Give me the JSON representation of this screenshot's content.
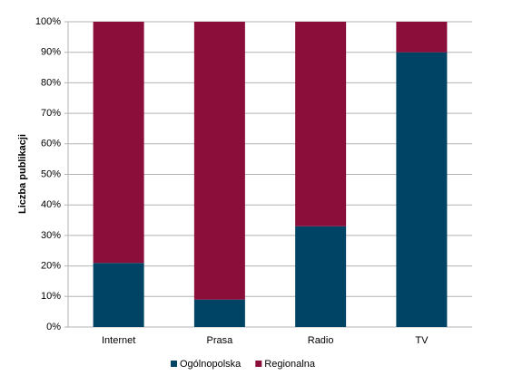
{
  "chart_data": {
    "type": "stacked_bar",
    "y_label": "Liczba publikacji",
    "categories": [
      "Internet",
      "Prasa",
      "Radio",
      "TV"
    ],
    "series": [
      {
        "name": "Ogólnopolska",
        "color": "#004465",
        "values": [
          21,
          9,
          33,
          90
        ]
      },
      {
        "name": "Regionalna",
        "color": "#8b0e3a",
        "values": [
          79,
          91,
          67,
          10
        ]
      }
    ],
    "ylim": [
      0,
      100
    ],
    "yticks": [
      {
        "value": 0,
        "label": "0%"
      },
      {
        "value": 10,
        "label": "10%"
      },
      {
        "value": 20,
        "label": "20%"
      },
      {
        "value": 30,
        "label": "30%"
      },
      {
        "value": 40,
        "label": "40%"
      },
      {
        "value": 50,
        "label": "50%"
      },
      {
        "value": 60,
        "label": "60%"
      },
      {
        "value": 70,
        "label": "70%"
      },
      {
        "value": 80,
        "label": "80%"
      },
      {
        "value": 90,
        "label": "90%"
      },
      {
        "value": 100,
        "label": "100%"
      }
    ],
    "grid": true,
    "legend": "bottom"
  }
}
